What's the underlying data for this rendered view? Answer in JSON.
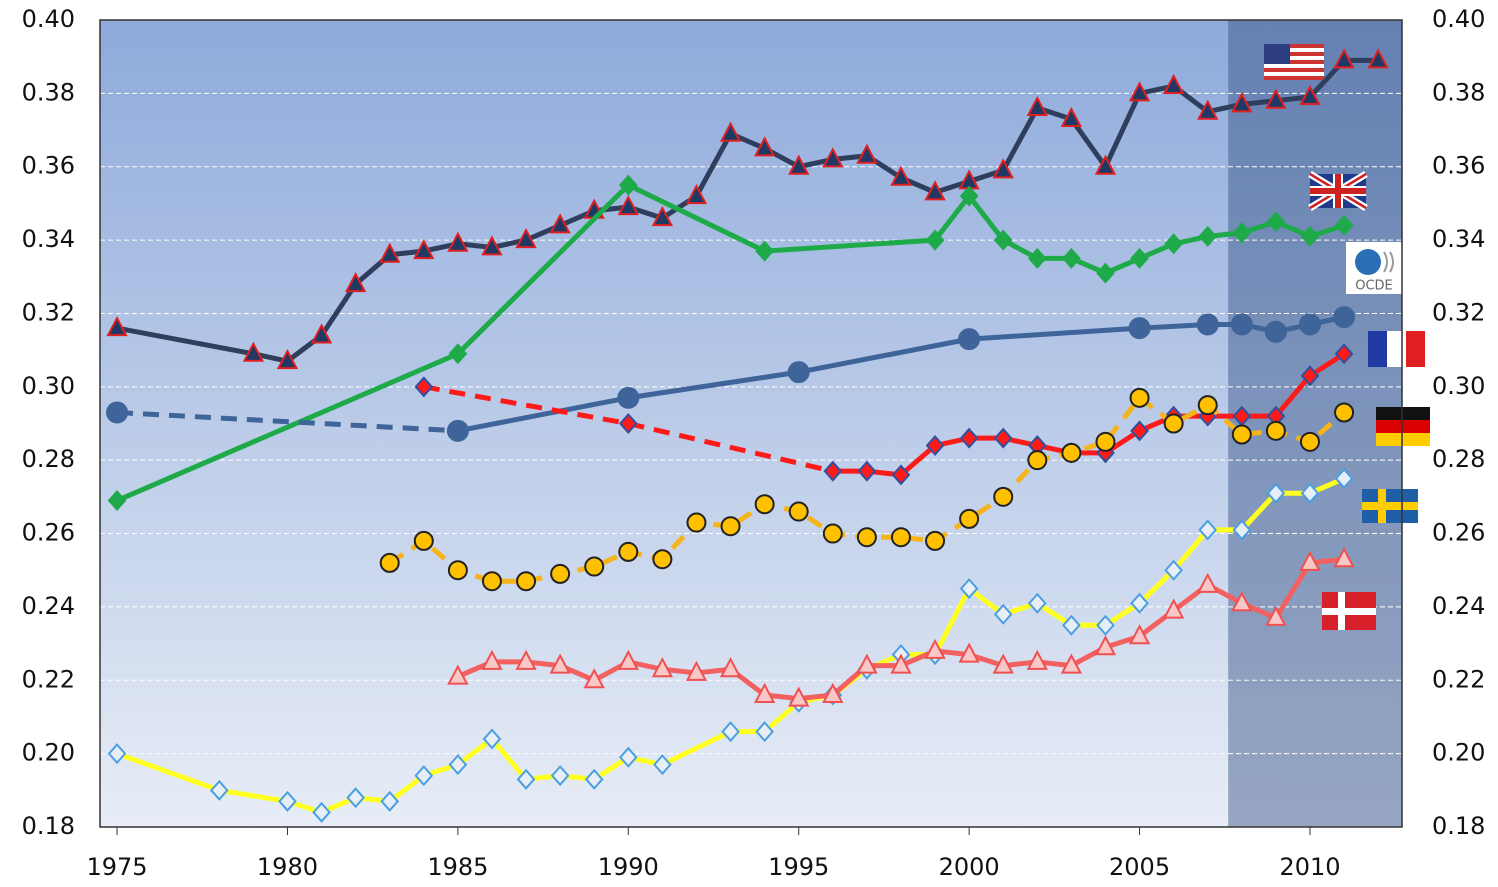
{
  "chart_data": {
    "type": "line",
    "xlim": [
      1974.5,
      2012.7
    ],
    "xticks": [
      1975,
      1980,
      1985,
      1990,
      1995,
      2000,
      2005,
      2010
    ],
    "ylim": [
      0.18,
      0.4
    ],
    "yticks": [
      0.18,
      {
        "value": 0.2,
        "label": "0.20"
      },
      0.22,
      0.24,
      0.26,
      0.28,
      {
        "value": 0.3,
        "label": "0.30"
      },
      0.32,
      0.34,
      0.36,
      0.38,
      {
        "value": 0.4,
        "label": "0.40"
      }
    ],
    "grid": true,
    "highlight_xrange": [
      2007.6,
      2012.7
    ],
    "logo_text": "OCDE",
    "series": [
      {
        "color": "#2e3e5c",
        "marker": "triangle",
        "marker_fill": "#1f3864",
        "marker_stroke": "#e02020",
        "x": [
          1975,
          1979,
          1980,
          1981,
          1982,
          1983,
          1984,
          1985,
          1986,
          1987,
          1988,
          1989,
          1990,
          1991,
          1992,
          1993,
          1994,
          1995,
          1996,
          1997,
          1998,
          1999,
          2000,
          2001,
          2002,
          2003,
          2004,
          2005,
          2006,
          2007,
          2008,
          2009,
          2010,
          2011,
          2012
        ],
        "values": [
          0.316,
          0.309,
          0.307,
          0.314,
          0.328,
          0.336,
          0.337,
          0.339,
          0.338,
          0.34,
          0.344,
          0.348,
          0.349,
          0.346,
          0.352,
          0.369,
          0.365,
          0.36,
          0.362,
          0.363,
          0.357,
          0.353,
          0.356,
          0.359,
          0.376,
          0.373,
          0.36,
          0.38,
          0.382,
          0.375,
          0.377,
          0.378,
          0.379,
          0.389,
          0.389
        ]
      },
      {
        "color": "#1faa4a",
        "marker": "diamond",
        "marker_fill": "#1faa4a",
        "marker_stroke": "#1faa4a",
        "x": [
          1975,
          1985,
          1990,
          1994,
          1999,
          2000,
          2001,
          2002,
          2003,
          2004,
          2005,
          2006,
          2007,
          2008,
          2009,
          2010,
          2011
        ],
        "values": [
          0.269,
          0.309,
          0.355,
          0.337,
          0.34,
          0.352,
          0.34,
          0.335,
          0.335,
          0.331,
          0.335,
          0.339,
          0.341,
          0.342,
          0.345,
          0.341,
          0.344
        ]
      },
      {
        "color": "#3f6499",
        "marker": "circle",
        "marker_fill": "#3f6499",
        "marker_stroke": "#3f6499",
        "dashed_before": 1985,
        "x": [
          1975,
          1985,
          1990,
          1995,
          2000,
          2005,
          2007,
          2008,
          2009,
          2010,
          2011
        ],
        "values": [
          0.293,
          0.288,
          0.297,
          0.304,
          0.313,
          0.316,
          0.317,
          0.317,
          0.315,
          0.317,
          0.319
        ]
      },
      {
        "color": "#ff1a1a",
        "marker": "diamond",
        "marker_fill": "#ff1a1a",
        "marker_stroke": "#3050a0",
        "dashed_before": 1996,
        "x": [
          1984,
          1990,
          1996,
          1997,
          1998,
          1999,
          2000,
          2001,
          2002,
          2003,
          2004,
          2005,
          2006,
          2007,
          2008,
          2009,
          2010,
          2011
        ],
        "values": [
          0.3,
          0.29,
          0.277,
          0.277,
          0.276,
          0.284,
          0.286,
          0.286,
          0.284,
          0.282,
          0.282,
          0.288,
          0.292,
          0.292,
          0.292,
          0.292,
          0.303,
          0.309
        ]
      },
      {
        "color": "#f5b41a",
        "marker": "circle",
        "marker_fill": "#ffc000",
        "marker_stroke": "#222222",
        "dashed_before": 2012,
        "x": [
          1983,
          1984,
          1985,
          1986,
          1987,
          1988,
          1989,
          1990,
          1991,
          1992,
          1993,
          1994,
          1995,
          1996,
          1997,
          1998,
          1999,
          2000,
          2001,
          2002,
          2003,
          2004,
          2005,
          2006,
          2007,
          2008,
          2009,
          2010,
          2011
        ],
        "values": [
          0.252,
          0.258,
          0.25,
          0.247,
          0.247,
          0.249,
          0.251,
          0.255,
          0.253,
          0.263,
          0.262,
          0.268,
          0.266,
          0.26,
          0.259,
          0.259,
          0.258,
          0.264,
          0.27,
          0.28,
          0.282,
          0.285,
          0.297,
          0.29,
          0.295,
          0.287,
          0.288,
          0.285,
          0.293
        ]
      },
      {
        "color": "#ffff20",
        "marker": "diamond",
        "marker_fill": "#e8eef8",
        "marker_stroke": "#4a9fe0",
        "x": [
          1975,
          1978,
          1980,
          1981,
          1982,
          1983,
          1984,
          1985,
          1986,
          1987,
          1988,
          1989,
          1990,
          1991,
          1993,
          1994,
          1995,
          1996,
          1997,
          1998,
          1999,
          2000,
          2001,
          2002,
          2003,
          2004,
          2005,
          2006,
          2007,
          2008,
          2009,
          2010,
          2011
        ],
        "values": [
          0.2,
          0.19,
          0.187,
          0.184,
          0.188,
          0.187,
          0.194,
          0.197,
          0.204,
          0.193,
          0.194,
          0.193,
          0.199,
          0.197,
          0.206,
          0.206,
          0.214,
          0.216,
          0.223,
          0.227,
          0.227,
          0.245,
          0.238,
          0.241,
          0.235,
          0.235,
          0.241,
          0.25,
          0.261,
          0.261,
          0.271,
          0.271,
          0.275
        ]
      },
      {
        "color": "#f26060",
        "marker": "triangle",
        "marker_fill": "#f8c8c8",
        "marker_stroke": "#f05050",
        "x": [
          1985,
          1986,
          1987,
          1988,
          1989,
          1990,
          1991,
          1992,
          1993,
          1994,
          1995,
          1996,
          1997,
          1998,
          1999,
          2000,
          2001,
          2002,
          2003,
          2004,
          2005,
          2006,
          2007,
          2008,
          2009,
          2010,
          2011
        ],
        "values": [
          0.221,
          0.225,
          0.225,
          0.224,
          0.22,
          0.225,
          0.223,
          0.222,
          0.223,
          0.216,
          0.215,
          0.216,
          0.224,
          0.224,
          0.228,
          0.227,
          0.224,
          0.225,
          0.224,
          0.229,
          0.232,
          0.239,
          0.246,
          0.241,
          0.237,
          0.252,
          0.253
        ]
      }
    ]
  }
}
